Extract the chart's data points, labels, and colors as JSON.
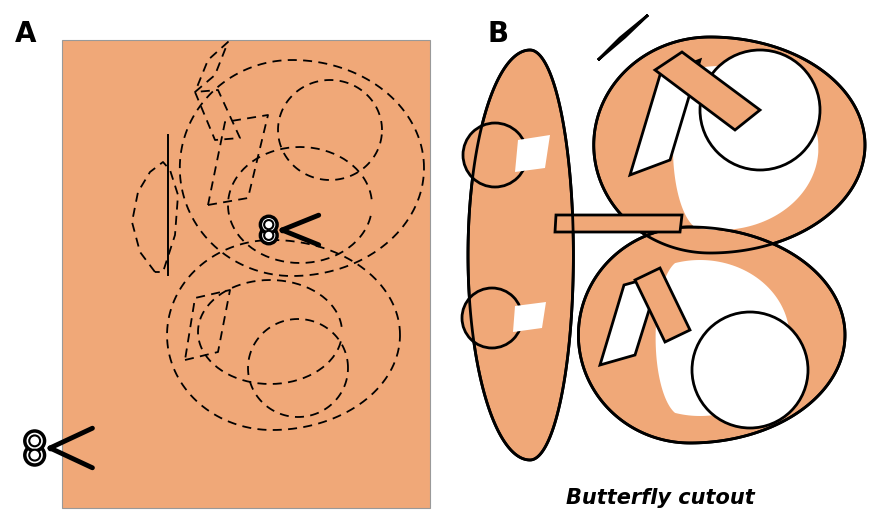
{
  "bg_color": "#ffffff",
  "panel_color": "#F0A878",
  "outline_color": "#1a1a1a",
  "label_A": "A",
  "label_B": "B",
  "caption": "Butterfly cutout",
  "fig_width": 8.8,
  "fig_height": 5.3
}
